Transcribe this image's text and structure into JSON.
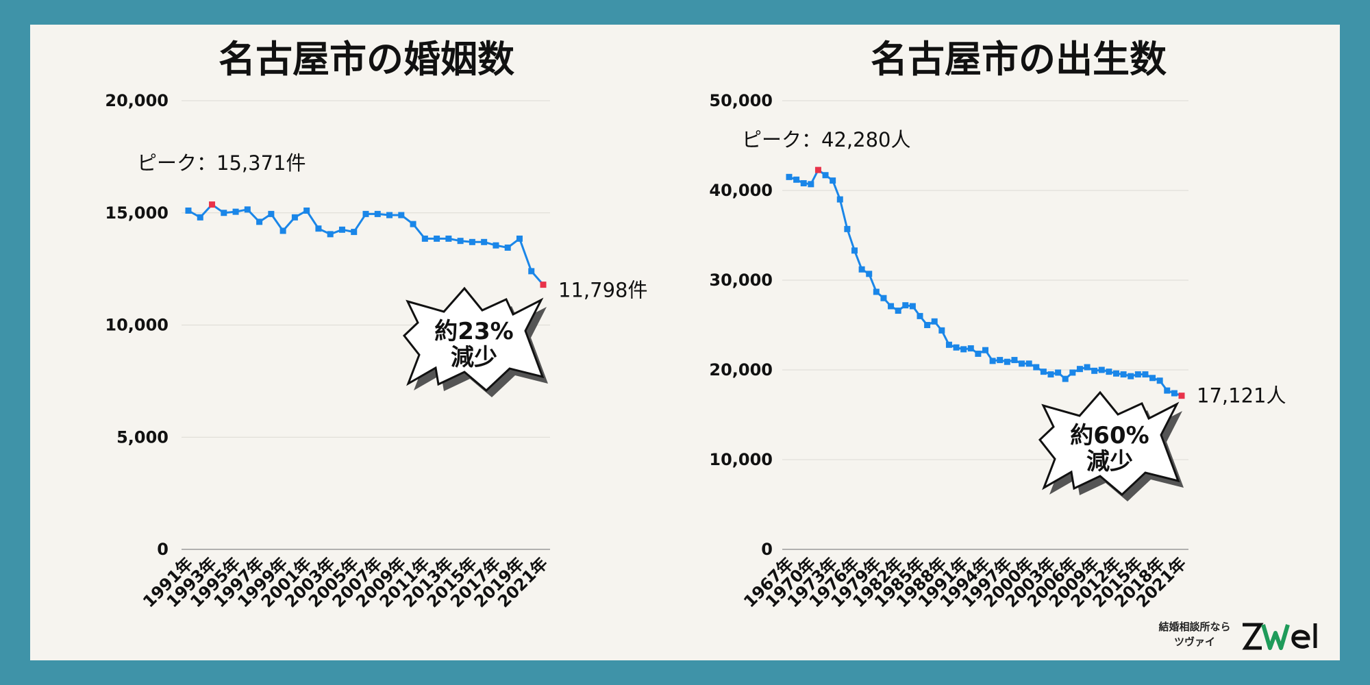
{
  "colors": {
    "background": "#3f93a8",
    "panel": "#f6f4ef",
    "line": "#1a86e8",
    "highlight": "#e8334a"
  },
  "chart_data": [
    {
      "type": "line",
      "title": "名古屋市の婚姻数",
      "x": [
        "1991年",
        "1992年",
        "1993年",
        "1994年",
        "1995年",
        "1996年",
        "1997年",
        "1998年",
        "1999年",
        "2000年",
        "2001年",
        "2002年",
        "2003年",
        "2004年",
        "2005年",
        "2006年",
        "2007年",
        "2008年",
        "2009年",
        "2010年",
        "2011年",
        "2012年",
        "2013年",
        "2014年",
        "2015年",
        "2016年",
        "2017年",
        "2018年",
        "2019年",
        "2020年",
        "2021年"
      ],
      "tick_labels": [
        "1991年",
        "1993年",
        "1995年",
        "1997年",
        "1999年",
        "2001年",
        "2003年",
        "2005年",
        "2007年",
        "2009年",
        "2011年",
        "2013年",
        "2015年",
        "2017年",
        "2019年",
        "2021年"
      ],
      "values": [
        15100,
        14800,
        15371,
        15000,
        15050,
        15150,
        14600,
        14950,
        14200,
        14800,
        15100,
        14300,
        14050,
        14250,
        14150,
        14950,
        14950,
        14900,
        14900,
        14500,
        13850,
        13850,
        13850,
        13750,
        13700,
        13700,
        13550,
        13450,
        13850,
        12400,
        11798
      ],
      "ylim": [
        0,
        20000
      ],
      "yticks": [
        0,
        5000,
        10000,
        15000,
        20000
      ],
      "ytick_labels": [
        "0",
        "5,000",
        "10,000",
        "15,000",
        "20,000"
      ],
      "grid": true,
      "peak_label": "ピーク：15,371件",
      "last_label": "11,798件",
      "callout": [
        "約23%",
        "減少"
      ]
    },
    {
      "type": "line",
      "title": "名古屋市の出生数",
      "x": [
        "1967年",
        "1968年",
        "1969年",
        "1970年",
        "1971年",
        "1972年",
        "1973年",
        "1974年",
        "1975年",
        "1976年",
        "1977年",
        "1978年",
        "1979年",
        "1980年",
        "1981年",
        "1982年",
        "1983年",
        "1984年",
        "1985年",
        "1986年",
        "1987年",
        "1988年",
        "1989年",
        "1990年",
        "1991年",
        "1992年",
        "1993年",
        "1994年",
        "1995年",
        "1996年",
        "1997年",
        "1998年",
        "1999年",
        "2000年",
        "2001年",
        "2002年",
        "2003年",
        "2004年",
        "2005年",
        "2006年",
        "2007年",
        "2008年",
        "2009年",
        "2010年",
        "2011年",
        "2012年",
        "2013年",
        "2014年",
        "2015年",
        "2016年",
        "2017年",
        "2018年",
        "2019年",
        "2020年",
        "2021年"
      ],
      "tick_labels": [
        "1967年",
        "1970年",
        "1973年",
        "1976年",
        "1979年",
        "1982年",
        "1985年",
        "1988年",
        "1991年",
        "1994年",
        "1997年",
        "2000年",
        "2003年",
        "2006年",
        "2009年",
        "2012年",
        "2015年",
        "2018年",
        "2021年"
      ],
      "values": [
        41500,
        41200,
        40800,
        40700,
        42280,
        41700,
        41100,
        39000,
        35700,
        33300,
        31200,
        30700,
        28700,
        28000,
        27100,
        26600,
        27200,
        27100,
        26000,
        25000,
        25400,
        24400,
        22800,
        22500,
        22300,
        22400,
        21800,
        22200,
        21000,
        21100,
        20900,
        21100,
        20700,
        20700,
        20300,
        19800,
        19500,
        19700,
        19000,
        19700,
        20100,
        20300,
        19900,
        20000,
        19800,
        19600,
        19500,
        19300,
        19500,
        19500,
        19100,
        18800,
        17700,
        17400,
        17121
      ],
      "ylim": [
        0,
        50000
      ],
      "yticks": [
        0,
        10000,
        20000,
        30000,
        40000,
        50000
      ],
      "ytick_labels": [
        "0",
        "10,000",
        "20,000",
        "30,000",
        "40,000",
        "50,000"
      ],
      "grid": true,
      "peak_label": "ピーク：42,280人",
      "last_label": "17,121人",
      "callout": [
        "約60%",
        "減少"
      ]
    }
  ],
  "logo": {
    "tagline_1": "結婚相談所なら",
    "tagline_2": "ツヴァイ",
    "brand": "ZWEI"
  }
}
